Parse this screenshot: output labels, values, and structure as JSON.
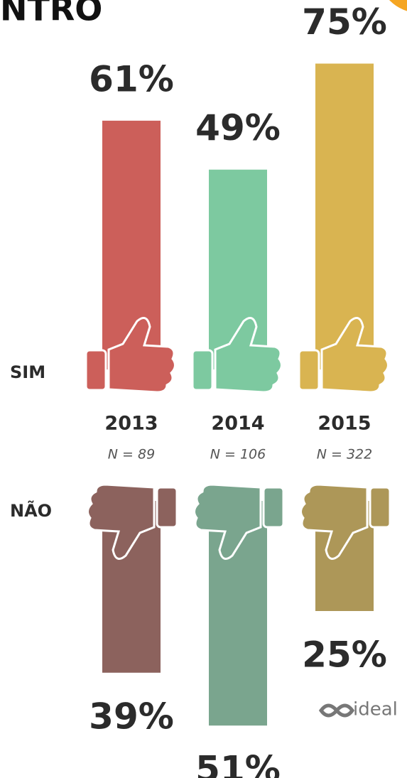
{
  "chart_data": {
    "type": "bar",
    "title": "NTRO",
    "categories": [
      "2013",
      "2014",
      "2015"
    ],
    "sample_sizes": [
      "N = 89",
      "N = 106",
      "N = 322"
    ],
    "series": [
      {
        "name": "SIM",
        "colors": [
          "#cc5f5a",
          "#7dc9a0",
          "#d9b451"
        ],
        "values": [
          61,
          49,
          75
        ],
        "value_labels": [
          "61%",
          "49%",
          "75%"
        ]
      },
      {
        "name": "NÃO",
        "colors": [
          "#8c625d",
          "#7aa58e",
          "#ad9758"
        ],
        "values": [
          39,
          51,
          25
        ],
        "value_labels": [
          "39%",
          "51%",
          "25%"
        ]
      }
    ],
    "logo": "ideal"
  }
}
